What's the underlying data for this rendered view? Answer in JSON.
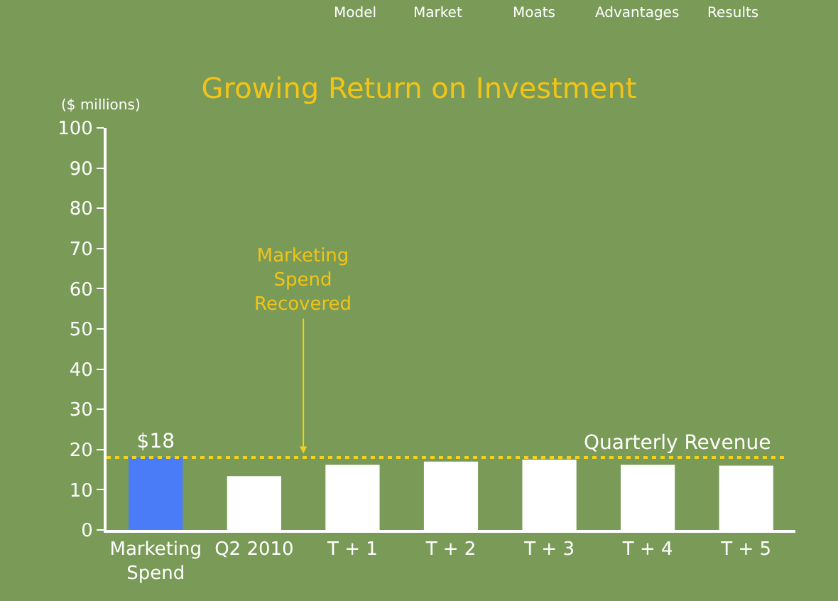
{
  "chart_data": {
    "type": "bar",
    "title": "Growing Return on Investment",
    "ylabel": "($ millions)",
    "categories": [
      "Marketing Spend",
      "Q2 2010",
      "T + 1",
      "T + 2",
      "T + 3",
      "T + 4",
      "T + 5"
    ],
    "values": [
      18,
      13.4,
      16.2,
      17,
      17.5,
      16.2,
      16
    ],
    "colors": [
      "#4a7cf7",
      "#ffffff",
      "#ffffff",
      "#ffffff",
      "#ffffff",
      "#ffffff",
      "#ffffff"
    ],
    "value_labels": [
      "$18",
      null,
      null,
      null,
      null,
      null,
      null
    ],
    "ylim": [
      0,
      100
    ],
    "yticks": [
      0,
      10,
      20,
      30,
      40,
      50,
      60,
      70,
      80,
      90,
      100
    ],
    "grid": false,
    "ref_lines": [
      {
        "axis": "y",
        "value": 18,
        "label": "Quarterly Revenue",
        "color": "#f2d21b",
        "line_style": "dotted"
      }
    ],
    "annotations": [
      "Model",
      "Market",
      "Moats",
      "Advantages",
      "Results",
      {
        "text": "Marketing\nSpend\nRecovered",
        "y": 18
      }
    ]
  }
}
